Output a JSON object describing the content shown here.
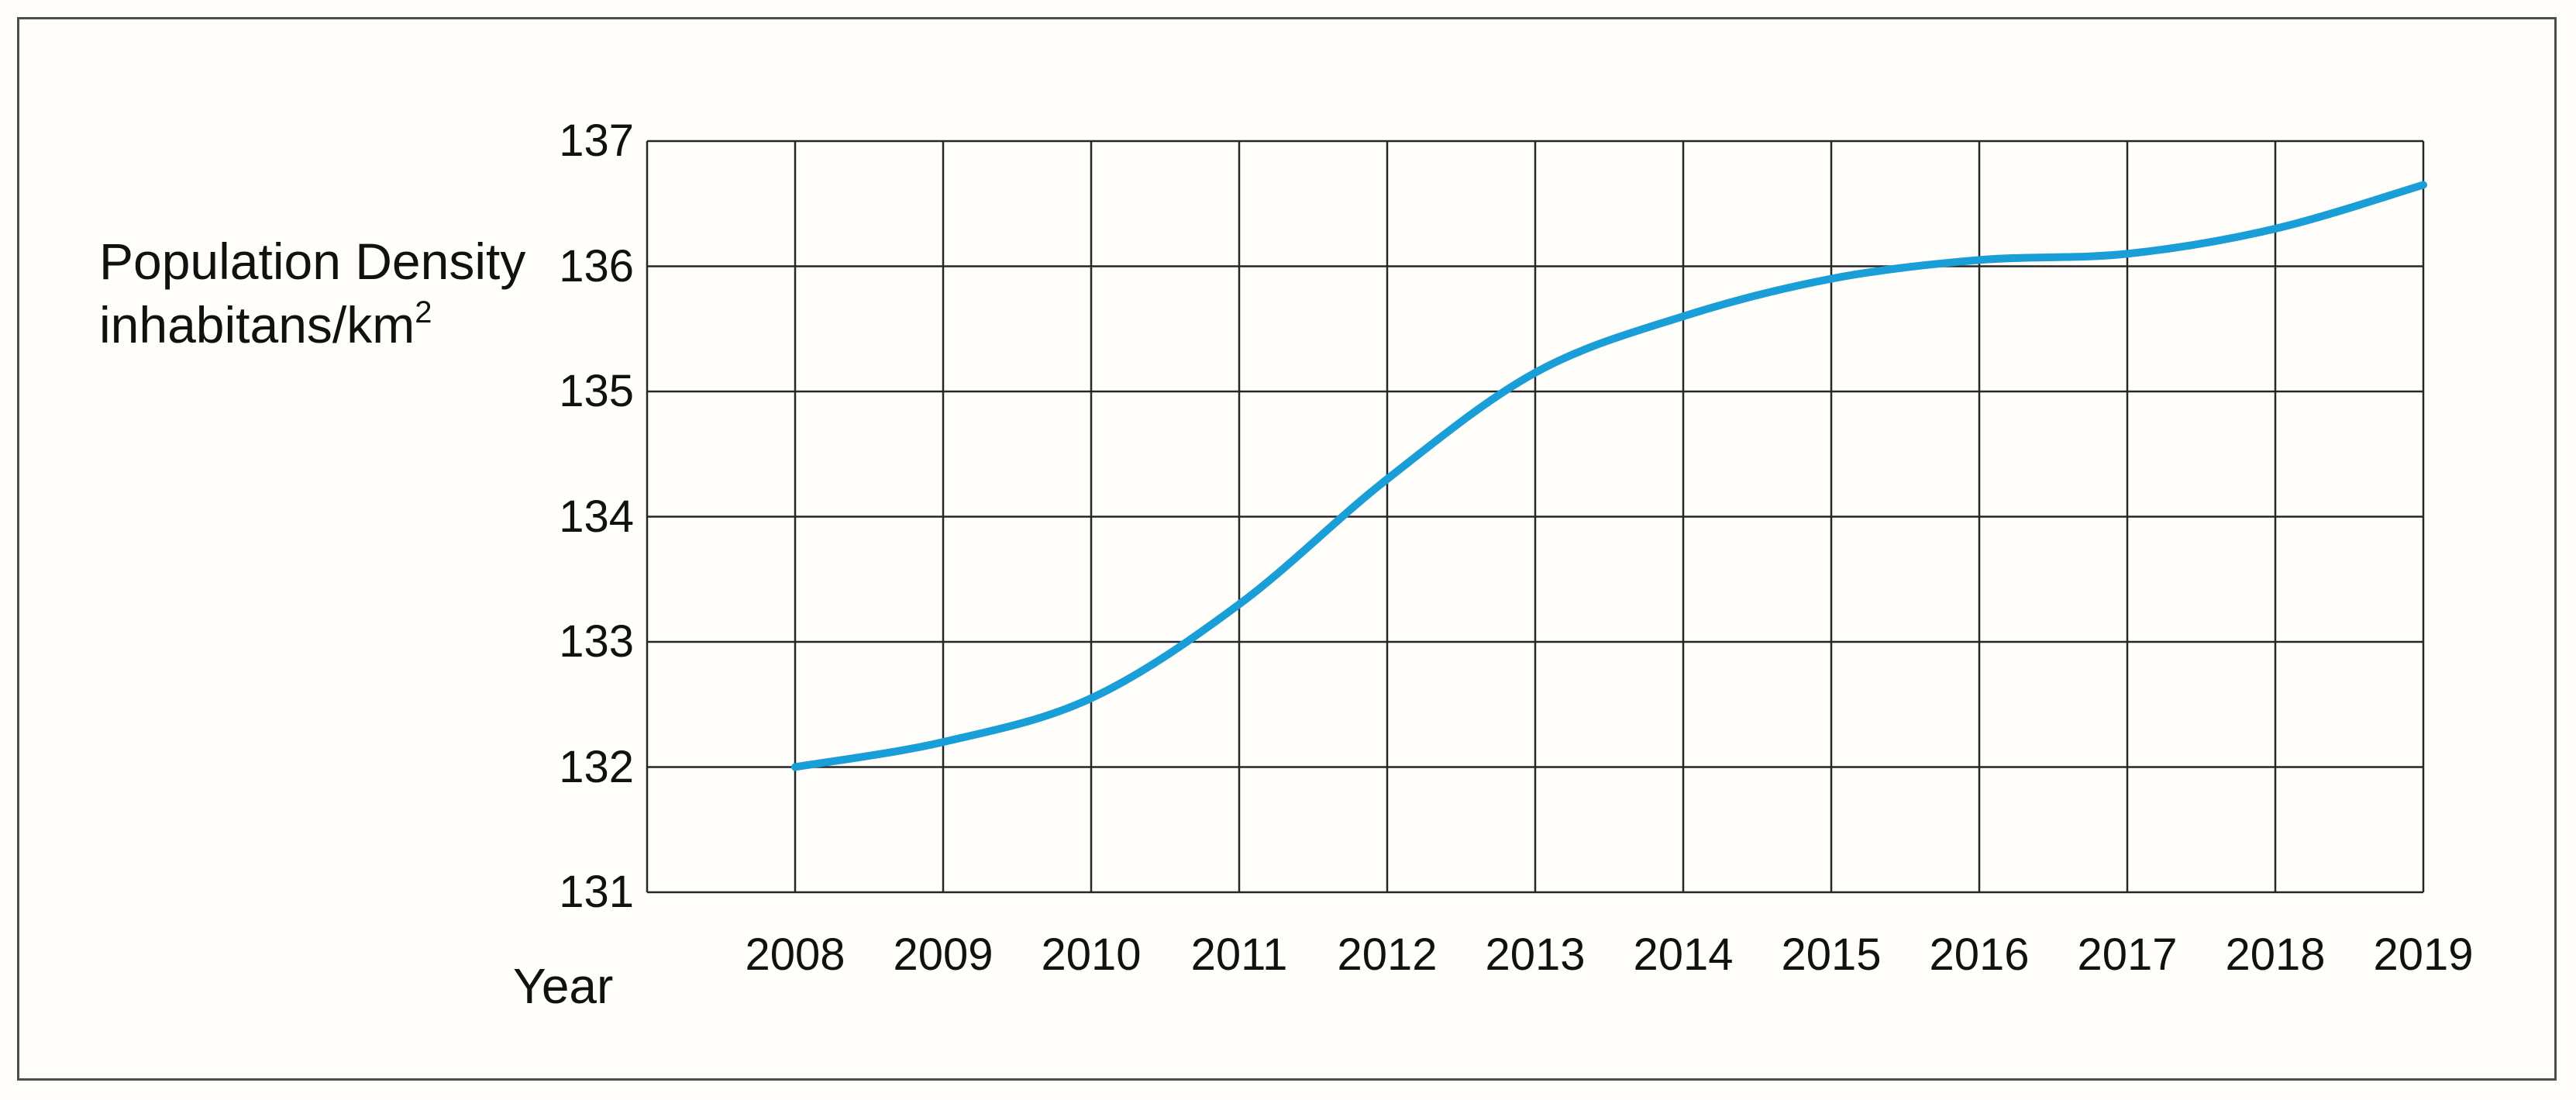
{
  "chart_data": {
    "type": "line",
    "title_line1": "Population Density",
    "title_line2_base": "inhabitans/km",
    "title_line2_sup": "2",
    "xlabel": "Year",
    "x": [
      2008,
      2009,
      2010,
      2011,
      2012,
      2013,
      2014,
      2015,
      2016,
      2017,
      2018,
      2019
    ],
    "series": [
      {
        "name": "population-density",
        "values": [
          132.0,
          132.2,
          132.55,
          133.3,
          134.3,
          135.15,
          135.6,
          135.9,
          136.05,
          136.1,
          136.3,
          136.65
        ]
      }
    ],
    "y_ticks": [
      137,
      136,
      135,
      134,
      133,
      132,
      131
    ],
    "ylim": [
      131,
      137
    ],
    "xlim_years": [
      2007,
      2019
    ],
    "grid": "on",
    "legend": "none"
  },
  "colors": {
    "line": "#1A9ED8",
    "grid": "#262626",
    "frame": "#4D4D4D",
    "background": "#FFFEFA",
    "text": "#111111"
  }
}
